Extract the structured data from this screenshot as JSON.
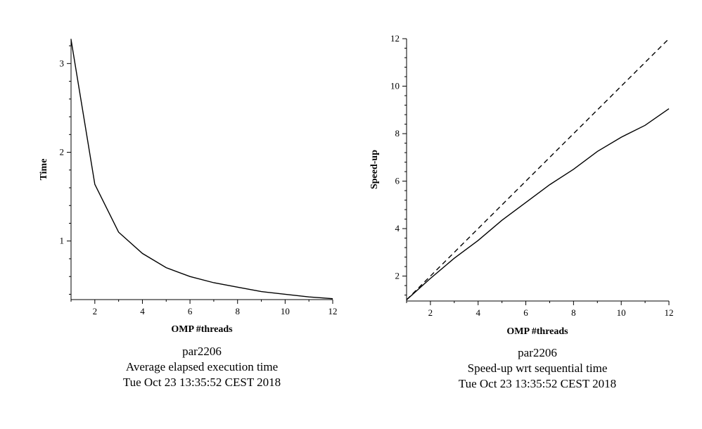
{
  "chart_data": [
    {
      "type": "line",
      "title": "",
      "xlabel": "OMP #threads",
      "ylabel": "Time",
      "xlim": [
        1,
        12
      ],
      "ylim": [
        0.34,
        3.28
      ],
      "xticks": [
        2,
        4,
        6,
        8,
        10,
        12
      ],
      "yticks": [
        1,
        2,
        3
      ],
      "grid": false,
      "series": [
        {
          "name": "",
          "style": "solid",
          "x": [
            1,
            2,
            3,
            4,
            5,
            6,
            7,
            8,
            9,
            10,
            11,
            12
          ],
          "y": [
            3.27,
            1.64,
            1.1,
            0.86,
            0.7,
            0.6,
            0.53,
            0.48,
            0.43,
            0.4,
            0.37,
            0.35
          ]
        }
      ],
      "caption": [
        "par2206",
        "Average elapsed execution time",
        "Tue Oct 23 13:35:52 CEST 2018"
      ]
    },
    {
      "type": "line",
      "title": "",
      "xlabel": "OMP #threads",
      "ylabel": "Speed-up",
      "xlim": [
        1,
        12
      ],
      "ylim": [
        0.95,
        12
      ],
      "xticks": [
        2,
        4,
        6,
        8,
        10,
        12
      ],
      "yticks": [
        2,
        4,
        6,
        8,
        10,
        12
      ],
      "grid": false,
      "series": [
        {
          "name": "",
          "style": "solid",
          "x": [
            1,
            2,
            3,
            4,
            5,
            6,
            7,
            8,
            9,
            10,
            11,
            12
          ],
          "y": [
            1.0,
            1.9,
            2.75,
            3.5,
            4.35,
            5.1,
            5.85,
            6.5,
            7.25,
            7.85,
            8.35,
            9.05
          ]
        },
        {
          "name": "",
          "style": "dashed",
          "x": [
            1,
            12
          ],
          "y": [
            1,
            12
          ]
        }
      ],
      "caption": [
        "par2206",
        "Speed-up wrt sequential time",
        "Tue Oct 23 13:35:52 CEST 2018"
      ]
    }
  ]
}
